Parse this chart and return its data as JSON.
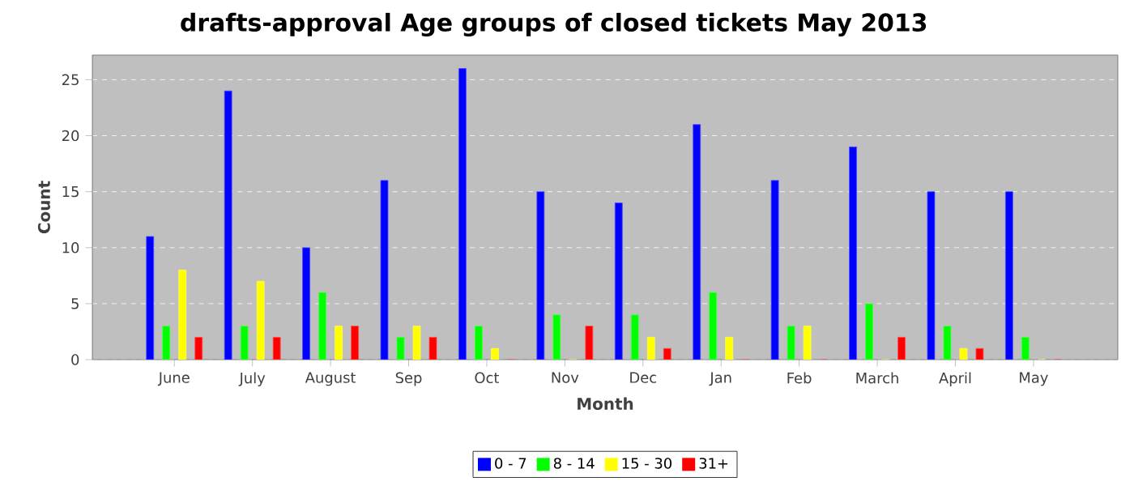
{
  "chart_data": {
    "type": "bar",
    "title": "drafts-approval Age groups of closed tickets May 2013",
    "xlabel": "Month",
    "ylabel": "Count",
    "categories": [
      "June",
      "July",
      "August",
      "Sep",
      "Oct",
      "Nov",
      "Dec",
      "Jan",
      "Feb",
      "March",
      "April",
      "May"
    ],
    "series": [
      {
        "name": "0 - 7",
        "color": "#0000ff",
        "values": [
          11,
          24,
          10,
          16,
          26,
          15,
          14,
          21,
          16,
          19,
          15,
          15
        ]
      },
      {
        "name": "8 - 14",
        "color": "#00ff00",
        "values": [
          3,
          3,
          6,
          2,
          3,
          4,
          4,
          6,
          3,
          5,
          3,
          2
        ]
      },
      {
        "name": "15 - 30",
        "color": "#ffff00",
        "values": [
          8,
          7,
          3,
          3,
          1,
          0,
          2,
          2,
          3,
          0,
          1,
          0
        ]
      },
      {
        "name": "31+",
        "color": "#ff0000",
        "values": [
          2,
          2,
          3,
          2,
          0,
          3,
          1,
          0,
          0,
          2,
          1,
          0
        ]
      }
    ],
    "ylim": [
      0,
      27.2
    ],
    "yticks": [
      0,
      5,
      10,
      15,
      20,
      25
    ],
    "grid": "y",
    "legend": "bottom"
  }
}
